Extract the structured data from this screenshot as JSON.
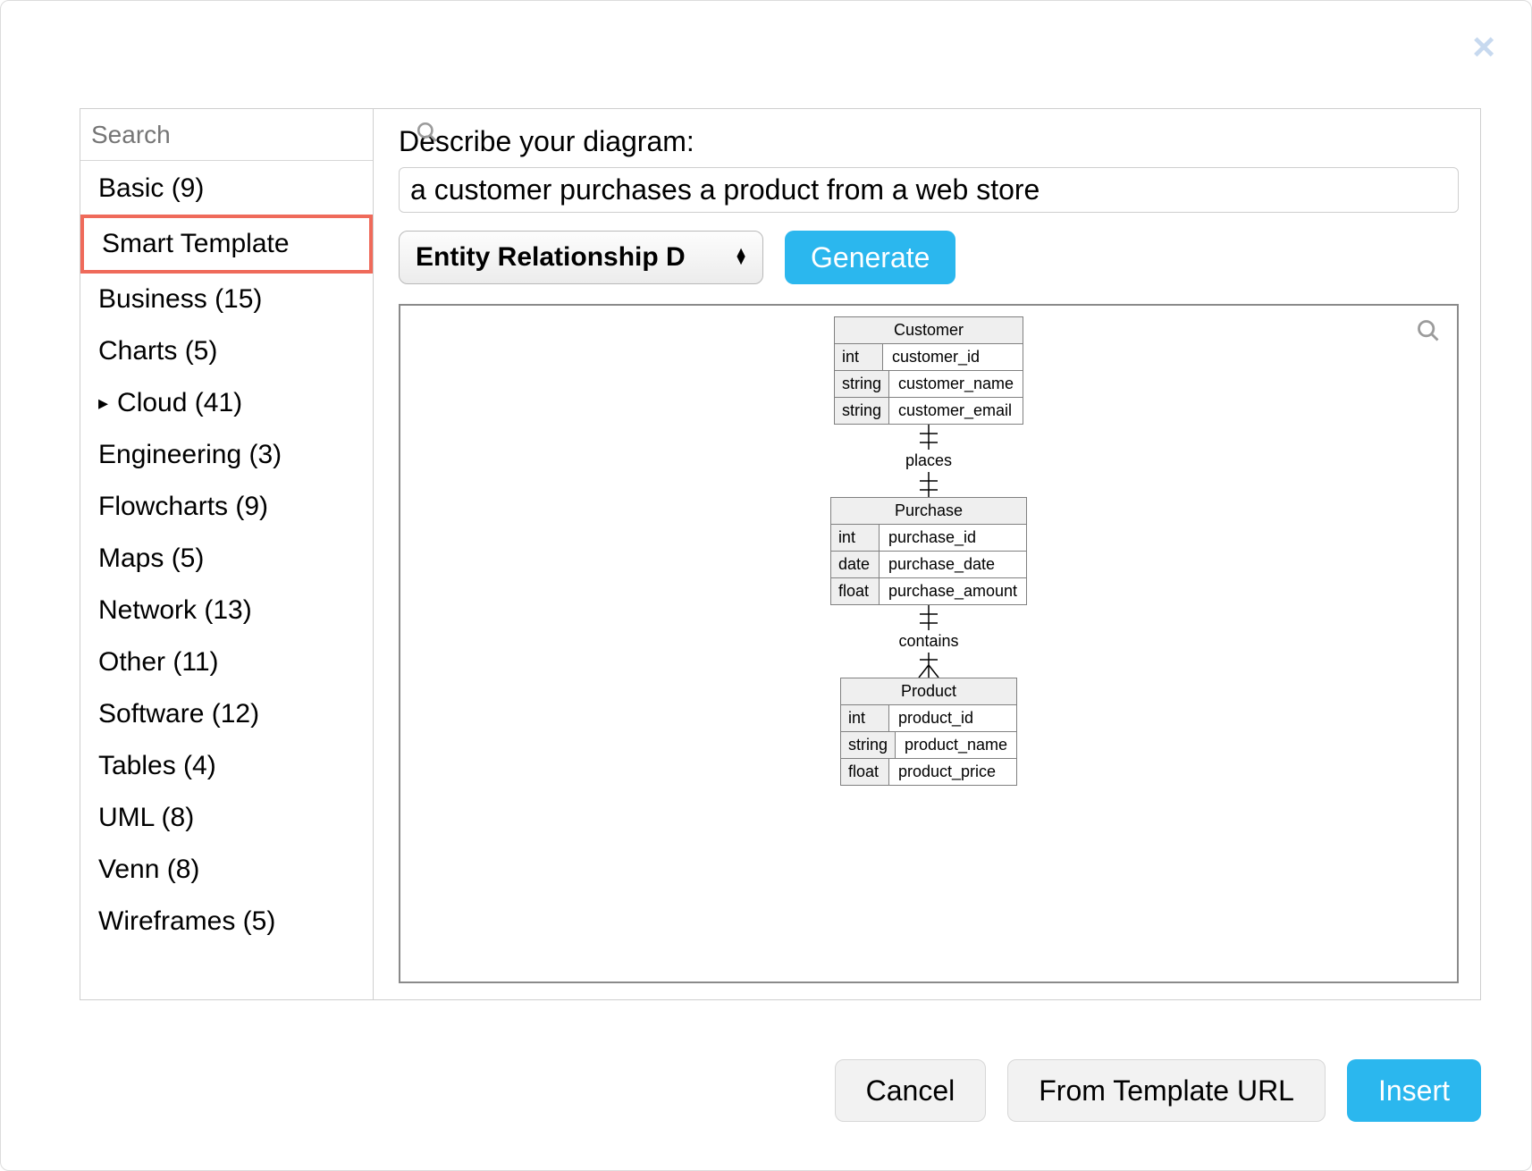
{
  "colors": {
    "accent": "#2bb7ee",
    "highlight_border": "#ef6a5a",
    "close_x": "#c7d9ef",
    "panel_border": "#cfcfcf",
    "preview_border": "#8a8a8a",
    "entity_border": "#808080",
    "entity_header_bg": "#efefef",
    "muted_icon": "#9b9b9b",
    "secondary_btn_bg": "#f2f2f2"
  },
  "sidebar": {
    "search_placeholder": "Search",
    "categories": [
      {
        "label": "Basic (9)",
        "expandable": false,
        "selected": false
      },
      {
        "label": "Smart Template",
        "expandable": false,
        "selected": true
      },
      {
        "label": "Business (15)",
        "expandable": false,
        "selected": false
      },
      {
        "label": "Charts (5)",
        "expandable": false,
        "selected": false
      },
      {
        "label": "Cloud (41)",
        "expandable": true,
        "selected": false
      },
      {
        "label": "Engineering (3)",
        "expandable": false,
        "selected": false
      },
      {
        "label": "Flowcharts (9)",
        "expandable": false,
        "selected": false
      },
      {
        "label": "Maps (5)",
        "expandable": false,
        "selected": false
      },
      {
        "label": "Network (13)",
        "expandable": false,
        "selected": false
      },
      {
        "label": "Other (11)",
        "expandable": false,
        "selected": false
      },
      {
        "label": "Software (12)",
        "expandable": false,
        "selected": false
      },
      {
        "label": "Tables (4)",
        "expandable": false,
        "selected": false
      },
      {
        "label": "UML (8)",
        "expandable": false,
        "selected": false
      },
      {
        "label": "Venn (8)",
        "expandable": false,
        "selected": false
      },
      {
        "label": "Wireframes (5)",
        "expandable": false,
        "selected": false
      }
    ]
  },
  "main": {
    "prompt_label": "Describe your diagram:",
    "prompt_value": "a customer purchases a product from a web store",
    "diagram_type_selected": "Entity Relationship D",
    "generate_label": "Generate"
  },
  "erd": {
    "type": "entity-relationship",
    "entities": [
      {
        "name": "Customer",
        "attrs": [
          {
            "type": "int",
            "name": "customer_id"
          },
          {
            "type": "string",
            "name": "customer_name"
          },
          {
            "type": "string",
            "name": "customer_email"
          }
        ]
      },
      {
        "name": "Purchase",
        "attrs": [
          {
            "type": "int",
            "name": "purchase_id"
          },
          {
            "type": "date",
            "name": "purchase_date"
          },
          {
            "type": "float",
            "name": "purchase_amount"
          }
        ]
      },
      {
        "name": "Product",
        "attrs": [
          {
            "type": "int",
            "name": "product_id"
          },
          {
            "type": "string",
            "name": "product_name"
          },
          {
            "type": "float",
            "name": "product_price"
          }
        ]
      }
    ],
    "relationships": [
      {
        "label": "places",
        "top_notation": "one",
        "bottom_notation": "one"
      },
      {
        "label": "contains",
        "top_notation": "one",
        "bottom_notation": "many"
      }
    ],
    "style": {
      "line_color": "#000000",
      "font_family": "Trebuchet MS",
      "title_fontsize": 18,
      "attr_fontsize": 18,
      "rel_fontsize": 18
    }
  },
  "footer": {
    "cancel": "Cancel",
    "from_url": "From Template URL",
    "insert": "Insert"
  }
}
